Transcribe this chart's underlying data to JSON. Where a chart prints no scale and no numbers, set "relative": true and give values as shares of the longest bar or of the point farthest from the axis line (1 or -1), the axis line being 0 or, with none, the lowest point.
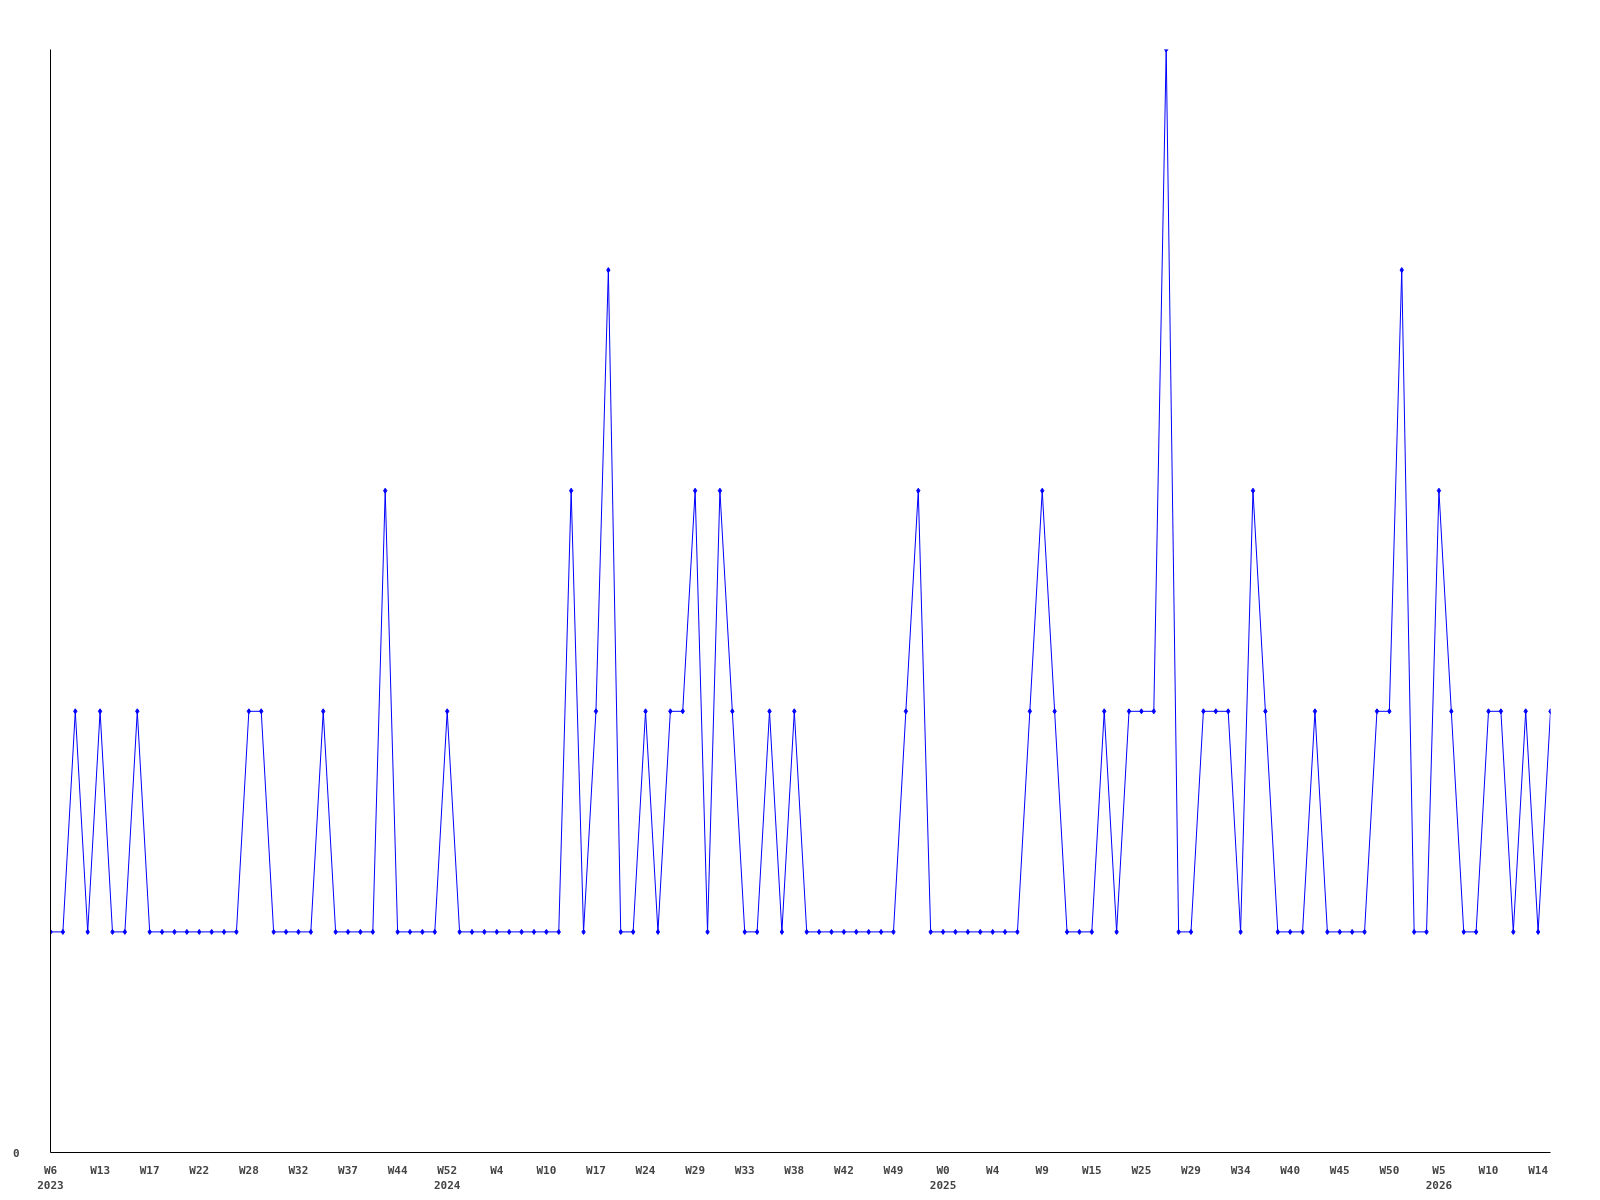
{
  "chart_data": {
    "type": "line",
    "relative": true,
    "annotations": [
      "0"
    ],
    "categories": [
      "W6\n2023",
      null,
      null,
      null,
      "W13",
      null,
      null,
      null,
      "W17",
      null,
      null,
      null,
      "W22",
      null,
      null,
      null,
      "W28",
      null,
      null,
      null,
      "W32",
      null,
      null,
      null,
      "W37",
      null,
      null,
      null,
      "W44",
      null,
      null,
      null,
      "W52\n2024",
      null,
      null,
      null,
      "W4",
      null,
      null,
      null,
      "W10",
      null,
      null,
      null,
      "W17",
      null,
      null,
      null,
      "W24",
      null,
      null,
      null,
      "W29",
      null,
      null,
      null,
      "W33",
      null,
      null,
      null,
      "W38",
      null,
      null,
      null,
      "W42",
      null,
      null,
      null,
      "W49",
      null,
      null,
      null,
      "W0\n2025",
      null,
      null,
      null,
      "W4",
      null,
      null,
      null,
      "W9",
      null,
      null,
      null,
      "W15",
      null,
      null,
      null,
      "W25",
      null,
      null,
      null,
      "W29",
      null,
      null,
      null,
      "W34",
      null,
      null,
      null,
      "W40",
      null,
      null,
      null,
      "W45",
      null,
      null,
      null,
      "W50",
      null,
      null,
      null,
      "W5\n2026",
      null,
      null,
      null,
      "W10",
      null,
      null,
      null,
      "W14",
      null
    ],
    "series": [
      {
        "color": "#0000ff",
        "values": [
          0.2,
          0.2,
          0.4,
          0.2,
          0.4,
          0.2,
          0.2,
          0.4,
          0.2,
          0.2,
          0.2,
          0.2,
          0.2,
          0.2,
          0.2,
          0.2,
          0.4,
          0.4,
          0.2,
          0.2,
          0.2,
          0.2,
          0.4,
          0.2,
          0.2,
          0.2,
          0.2,
          0.6,
          0.2,
          0.2,
          0.2,
          0.2,
          0.4,
          0.2,
          0.2,
          0.2,
          0.2,
          0.2,
          0.2,
          0.2,
          0.2,
          0.2,
          0.6,
          0.2,
          0.4,
          0.8,
          0.2,
          0.2,
          0.4,
          0.2,
          0.4,
          0.4,
          0.6,
          0.2,
          0.6,
          0.4,
          0.2,
          0.2,
          0.4,
          0.2,
          0.4,
          0.2,
          0.2,
          0.2,
          0.2,
          0.2,
          0.2,
          0.2,
          0.2,
          0.4,
          0.6,
          0.2,
          0.2,
          0.2,
          0.2,
          0.2,
          0.2,
          0.2,
          0.2,
          0.4,
          0.6,
          0.4,
          0.2,
          0.2,
          0.2,
          0.4,
          0.2,
          0.4,
          0.4,
          0.4,
          1.0,
          0.2,
          0.2,
          0.4,
          0.4,
          0.4,
          0.2,
          0.6,
          0.4,
          0.2,
          0.2,
          0.2,
          0.4,
          0.2,
          0.2,
          0.2,
          0.2,
          0.4,
          0.4,
          0.8,
          0.2,
          0.2,
          0.6,
          0.4,
          0.2,
          0.2,
          0.4,
          0.4,
          0.2,
          0.4,
          0.2,
          0.4
        ]
      }
    ],
    "marker": "diamond",
    "line_style": "solid",
    "grid": false
  }
}
